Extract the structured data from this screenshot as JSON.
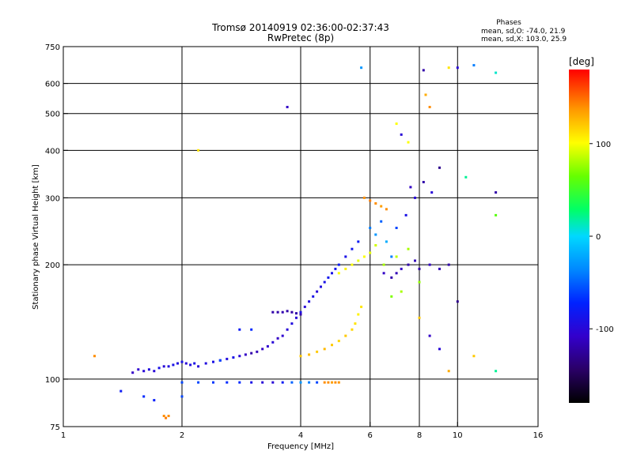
{
  "chart_data": {
    "type": "scatter",
    "title": "Tromsø 20140919 02:36:00-02:37:43",
    "subtitle": "RwPretec (8p)",
    "xlabel": "Frequency [MHz]",
    "ylabel": "Stationary phase Virtual Height [km]",
    "x_scale": "log",
    "y_scale": "log",
    "xlim": [
      1,
      16
    ],
    "ylim": [
      75,
      750
    ],
    "x_ticks": [
      1,
      2,
      4,
      6,
      8,
      10,
      16
    ],
    "y_ticks": [
      75,
      100,
      200,
      300,
      400,
      500,
      600,
      750
    ],
    "grid_x": [
      2,
      4,
      6,
      8,
      10
    ],
    "grid_y": [
      100,
      200,
      300,
      400,
      500,
      600
    ],
    "colorbar": {
      "label": "[deg]",
      "ticks": [
        100,
        0,
        -100
      ],
      "range": [
        -180,
        180
      ],
      "colors": [
        "#000000",
        "#2a0066",
        "#3300cc",
        "#0022ff",
        "#0088ff",
        "#00d8ff",
        "#00ff66",
        "#66ff00",
        "#ffff00",
        "#ff9900",
        "#ff0000"
      ]
    },
    "stats": {
      "title": "Phases",
      "line_o": "mean, sd,O: -74.0, 21.9",
      "line_x": "mean, sd,X: 103.0, 25.9"
    },
    "series": [
      {
        "points": [
          [
            1.5,
            104,
            -110
          ],
          [
            1.55,
            106,
            -105
          ],
          [
            1.6,
            105,
            -100
          ],
          [
            1.65,
            106,
            -95
          ],
          [
            1.7,
            105,
            -100
          ],
          [
            1.75,
            107,
            -90
          ],
          [
            1.8,
            108,
            -100
          ],
          [
            1.85,
            108,
            -95
          ],
          [
            1.9,
            109,
            -90
          ],
          [
            1.95,
            110,
            -95
          ],
          [
            2.0,
            111,
            -90
          ],
          [
            2.05,
            110,
            -100
          ],
          [
            2.1,
            109,
            -95
          ],
          [
            2.15,
            110,
            -90
          ],
          [
            2.2,
            108,
            -100
          ],
          [
            2.3,
            110,
            -95
          ],
          [
            2.4,
            111,
            -90
          ],
          [
            2.5,
            112,
            -100
          ],
          [
            2.6,
            113,
            -95
          ],
          [
            2.7,
            114,
            -90
          ],
          [
            2.8,
            115,
            -100
          ],
          [
            2.9,
            116,
            -110
          ],
          [
            3.0,
            117,
            -120
          ],
          [
            3.1,
            118,
            -115
          ],
          [
            3.2,
            120,
            -110
          ],
          [
            3.3,
            122,
            -105
          ],
          [
            3.4,
            125,
            -100
          ],
          [
            3.5,
            128,
            -110
          ],
          [
            3.6,
            130,
            -105
          ],
          [
            3.7,
            135,
            -100
          ],
          [
            3.8,
            140,
            -95
          ],
          [
            3.9,
            145,
            -100
          ],
          [
            4.0,
            150,
            -90
          ],
          [
            4.1,
            155,
            -100
          ],
          [
            4.2,
            160,
            -95
          ],
          [
            4.3,
            165,
            -90
          ],
          [
            4.4,
            170,
            -100
          ],
          [
            4.5,
            175,
            -95
          ],
          [
            4.6,
            180,
            -90
          ],
          [
            4.7,
            185,
            -85
          ],
          [
            4.8,
            190,
            -90
          ],
          [
            4.9,
            195,
            -85
          ],
          [
            5.0,
            200,
            -80
          ],
          [
            5.2,
            210,
            -90
          ],
          [
            5.4,
            220,
            -85
          ],
          [
            5.6,
            230,
            -80
          ]
        ]
      },
      {
        "points": [
          [
            3.4,
            150,
            -120
          ],
          [
            3.5,
            150,
            -120
          ],
          [
            3.6,
            150,
            -118
          ],
          [
            3.7,
            151,
            -120
          ],
          [
            3.8,
            150,
            -122
          ],
          [
            3.9,
            149,
            -120
          ],
          [
            4.0,
            148,
            -118
          ]
        ]
      },
      {
        "points": [
          [
            2.0,
            98,
            -60
          ],
          [
            2.2,
            98,
            -60
          ],
          [
            2.4,
            98,
            -65
          ],
          [
            2.6,
            98,
            -70
          ],
          [
            2.8,
            98,
            -70
          ],
          [
            3.0,
            98,
            -90
          ],
          [
            3.2,
            98,
            -100
          ],
          [
            3.4,
            98,
            -100
          ],
          [
            3.6,
            98,
            -80
          ],
          [
            3.8,
            98,
            -50
          ],
          [
            4.0,
            98,
            -30
          ],
          [
            4.2,
            98,
            -40
          ],
          [
            4.4,
            98,
            -60
          ]
        ]
      },
      {
        "points": [
          [
            4.6,
            98,
            140
          ],
          [
            4.7,
            98,
            140
          ],
          [
            4.8,
            98,
            135
          ],
          [
            4.9,
            98,
            140
          ],
          [
            5.0,
            98,
            138
          ]
        ]
      },
      {
        "points": [
          [
            1.8,
            80,
            140
          ],
          [
            1.82,
            79,
            145
          ],
          [
            1.85,
            80,
            140
          ]
        ]
      },
      {
        "points": [
          [
            4.0,
            115,
            120
          ],
          [
            4.2,
            116,
            125
          ],
          [
            4.4,
            118,
            120
          ],
          [
            4.6,
            120,
            125
          ],
          [
            4.8,
            123,
            120
          ],
          [
            5.0,
            126,
            115
          ],
          [
            5.2,
            130,
            120
          ],
          [
            5.4,
            135,
            115
          ],
          [
            5.5,
            140,
            110
          ],
          [
            5.6,
            148,
            105
          ],
          [
            5.7,
            155,
            110
          ]
        ]
      },
      {
        "points": [
          [
            5.8,
            300,
            140
          ],
          [
            6.0,
            295,
            145
          ],
          [
            6.2,
            290,
            140
          ],
          [
            6.4,
            285,
            135
          ],
          [
            6.6,
            280,
            140
          ]
        ]
      },
      {
        "points": [
          [
            5.0,
            190,
            100
          ],
          [
            5.2,
            195,
            105
          ],
          [
            5.4,
            200,
            100
          ],
          [
            5.6,
            205,
            95
          ],
          [
            5.8,
            210,
            100
          ],
          [
            6.0,
            215,
            95
          ],
          [
            6.2,
            225,
            90
          ]
        ]
      },
      {
        "points": [
          [
            6.5,
            190,
            -110
          ],
          [
            6.8,
            185,
            -120
          ],
          [
            7.0,
            190,
            -115
          ],
          [
            7.2,
            195,
            -110
          ],
          [
            7.5,
            200,
            -120
          ],
          [
            7.8,
            205,
            -115
          ],
          [
            8.0,
            195,
            -120
          ],
          [
            8.5,
            200,
            -110
          ],
          [
            9.0,
            195,
            -115
          ],
          [
            9.5,
            200,
            -120
          ]
        ]
      },
      {
        "points": [
          [
            6.5,
            200,
            80
          ],
          [
            7.0,
            210,
            85
          ],
          [
            7.5,
            220,
            80
          ],
          [
            8.0,
            180,
            75
          ],
          [
            6.8,
            165,
            70
          ],
          [
            7.2,
            170,
            80
          ]
        ]
      },
      {
        "points": [
          [
            7.0,
            470,
            100
          ],
          [
            7.2,
            440,
            -100
          ],
          [
            7.5,
            420,
            100
          ],
          [
            8.3,
            560,
            130
          ],
          [
            8.5,
            520,
            140
          ],
          [
            8.2,
            650,
            -120
          ],
          [
            9.5,
            660,
            110
          ],
          [
            10.0,
            660,
            -100
          ],
          [
            11.0,
            670,
            -40
          ],
          [
            12.5,
            640,
            10
          ],
          [
            3.7,
            520,
            -110
          ],
          [
            2.2,
            400,
            110
          ],
          [
            5.7,
            660,
            -30
          ],
          [
            1.2,
            115,
            140
          ]
        ]
      },
      {
        "points": [
          [
            8.0,
            145,
            120
          ],
          [
            8.5,
            130,
            -110
          ],
          [
            9.0,
            120,
            -100
          ],
          [
            9.5,
            105,
            130
          ],
          [
            10.0,
            160,
            -130
          ],
          [
            10.5,
            340,
            20
          ],
          [
            11.0,
            115,
            120
          ],
          [
            12.5,
            105,
            20
          ],
          [
            12.5,
            310,
            -120
          ],
          [
            12.5,
            270,
            60
          ]
        ]
      },
      {
        "points": [
          [
            1.4,
            93,
            -80
          ],
          [
            1.6,
            90,
            -70
          ],
          [
            1.7,
            88,
            -75
          ],
          [
            2.0,
            90,
            -60
          ],
          [
            2.5,
            112,
            -60
          ],
          [
            2.8,
            135,
            -80
          ],
          [
            3.0,
            135,
            -70
          ]
        ]
      },
      {
        "points": [
          [
            6.0,
            250,
            -40
          ],
          [
            6.2,
            240,
            -30
          ],
          [
            6.4,
            260,
            -50
          ],
          [
            6.6,
            230,
            -20
          ],
          [
            6.8,
            210,
            -40
          ],
          [
            7.0,
            250,
            -60
          ],
          [
            7.4,
            270,
            -90
          ],
          [
            7.6,
            320,
            -110
          ],
          [
            7.8,
            300,
            -100
          ],
          [
            8.2,
            330,
            -120
          ],
          [
            8.6,
            310,
            -100
          ],
          [
            9.0,
            360,
            -130
          ]
        ]
      }
    ]
  }
}
